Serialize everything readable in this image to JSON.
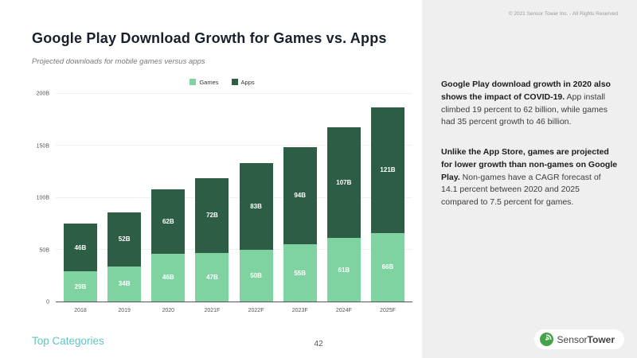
{
  "meta": {
    "copyright": "© 2021 Sensor Tower Inc. - All Rights Reserved",
    "page_number": "42",
    "footer_left": "Top Categories"
  },
  "header": {
    "title": "Google Play Download Growth for Games vs. Apps",
    "subtitle": "Projected downloads for mobile games versus apps"
  },
  "sidebar": {
    "paragraphs": [
      {
        "bold": "Google Play download growth in 2020 also shows the impact of COVID-19.",
        "text": " App install climbed 19 percent to 62 billion, while games had 35 percent growth to 46 billion."
      },
      {
        "bold": "Unlike the App Store, games are projected for lower growth than non-games on Google Play.",
        "text": " Non-games have a CAGR forecast of 14.1 percent between 2020 and 2025 compared to 7.5 percent for games."
      }
    ]
  },
  "logo": {
    "sensor": "Sensor",
    "tower": "Tower",
    "circle_color": "#44a248"
  },
  "colors": {
    "games_green": "#7fd3a1",
    "apps_green": "#2d5d45",
    "accent_teal": "#5fc6c2",
    "title_dark": "#17202b",
    "sidebar_bg": "#efefef"
  },
  "chart_data": {
    "type": "bar",
    "stacked": true,
    "title": "Google Play Download Growth for Games vs. Apps",
    "subtitle": "Projected downloads for mobile games versus apps",
    "categories": [
      "2018",
      "2019",
      "2020",
      "2021F",
      "2022F",
      "2023F",
      "2024F",
      "2025F"
    ],
    "series": [
      {
        "name": "Games",
        "color": "#7fd3a1",
        "values": [
          29,
          34,
          46,
          47,
          50,
          55,
          61,
          66
        ],
        "labels": [
          "29B",
          "34B",
          "46B",
          "47B",
          "50B",
          "55B",
          "61B",
          "66B"
        ]
      },
      {
        "name": "Apps",
        "color": "#2d5d45",
        "values": [
          46,
          52,
          62,
          72,
          83,
          94,
          107,
          121
        ],
        "labels": [
          "46B",
          "52B",
          "62B",
          "72B",
          "83B",
          "94B",
          "107B",
          "121B"
        ]
      }
    ],
    "totals": [
      75,
      86,
      108,
      119,
      133,
      149,
      168,
      187
    ],
    "units": "billions of downloads",
    "ylim": [
      0,
      200
    ],
    "yticks": [
      "0",
      "50B",
      "100B",
      "150B",
      "200B"
    ],
    "grid": false,
    "legend_position": "top"
  }
}
